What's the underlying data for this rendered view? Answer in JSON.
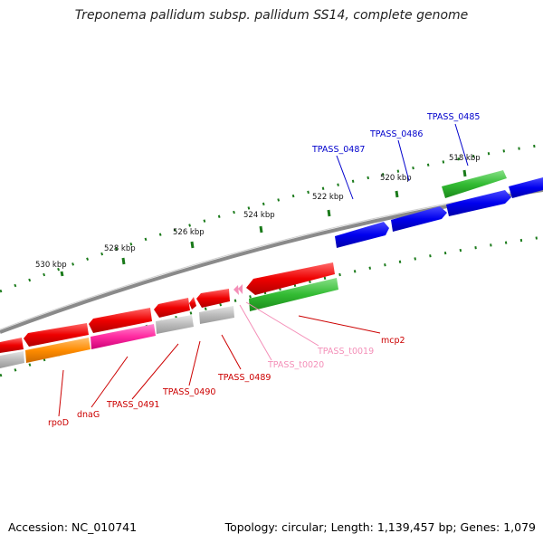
{
  "title": "Treponema pallidum subsp. pallidum SS14, complete genome",
  "footer": {
    "accession": "Accession: NC_010741",
    "summary": "Topology: circular; Length: 1,139,457 bp; Genes: 1,079"
  },
  "scale_labels": [
    "530 kbp",
    "528 kbp",
    "526 kbp",
    "524 kbp",
    "522 kbp",
    "520 kbp",
    "518 kbp"
  ],
  "gene_labels": [
    {
      "id": "tpass-0485",
      "text": "TPASS_0485",
      "color": "#0000cc"
    },
    {
      "id": "tpass-0486",
      "text": "TPASS_0486",
      "color": "#0000cc"
    },
    {
      "id": "tpass-0487",
      "text": "TPASS_0487",
      "color": "#0000cc"
    },
    {
      "id": "mcp2",
      "text": "mcp2",
      "color": "#cc0000"
    },
    {
      "id": "tpass-t0019",
      "text": "TPASS_t0019",
      "color": "#f48fb8"
    },
    {
      "id": "tpass-t0020",
      "text": "TPASS_t0020",
      "color": "#f48fb8"
    },
    {
      "id": "tpass-0489",
      "text": "TPASS_0489",
      "color": "#cc0000"
    },
    {
      "id": "tpass-0490",
      "text": "TPASS_0490",
      "color": "#cc0000"
    },
    {
      "id": "tpass-0491",
      "text": "TPASS_0491",
      "color": "#cc0000"
    },
    {
      "id": "dnag",
      "text": "dnaG",
      "color": "#cc0000"
    },
    {
      "id": "rpod",
      "text": "rpoD",
      "color": "#cc0000"
    }
  ],
  "colors": {
    "backbone": "#8a8a8a",
    "forward_gene": "#0000ee",
    "reverse_gene": "#ee0000",
    "rna_gene": "#33bb33",
    "highlight_gene": "#ff2aa0",
    "orange_gene": "#ff8c00",
    "gray_feature": "#bbbbbb",
    "tick": "#1a7a1a"
  }
}
